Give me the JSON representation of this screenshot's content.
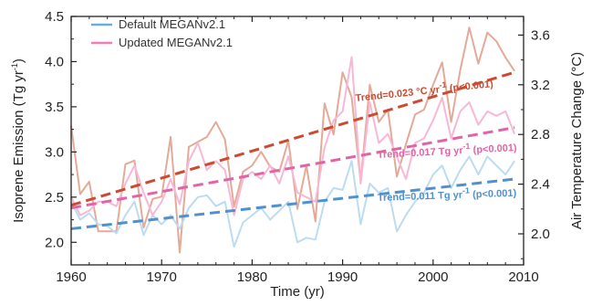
{
  "chart_data": {
    "type": "line",
    "xlabel": "Time (yr)",
    "ylabel_left": "Isoprene Emission (Tg yr",
    "ylabel_left_sup": "-1",
    "ylabel_left_tail": ")",
    "ylabel_right": "Air Temperature Change (°C)",
    "xlim": [
      1960,
      2010
    ],
    "ylim_left": [
      1.75,
      4.5
    ],
    "ylim_right": [
      1.75,
      3.75
    ],
    "x_ticks": [
      1960,
      1970,
      1980,
      1990,
      2000,
      2010
    ],
    "y_left_ticks": [
      2.0,
      2.5,
      3.0,
      3.5,
      4.0,
      4.5
    ],
    "y_left_tick_labels": [
      "2.0",
      "2.5",
      "3.0",
      "3.5",
      "4.0",
      "4.5"
    ],
    "y_right_ticks": [
      2.0,
      2.4,
      2.8,
      3.2,
      3.6
    ],
    "y_right_tick_labels": [
      "2.0",
      "2.4",
      "2.8",
      "3.2",
      "3.6"
    ],
    "legend_position": "top-left",
    "legend": [
      {
        "label": "Default MEGANv2.1",
        "color": "#6aaee0"
      },
      {
        "label": "Updated MEGANv2.1",
        "color": "#f07fb7"
      }
    ],
    "x": [
      1960,
      1961,
      1962,
      1963,
      1964,
      1965,
      1966,
      1967,
      1968,
      1969,
      1970,
      1971,
      1972,
      1973,
      1974,
      1975,
      1976,
      1977,
      1978,
      1979,
      1980,
      1981,
      1982,
      1983,
      1984,
      1985,
      1986,
      1987,
      1988,
      1989,
      1990,
      1991,
      1992,
      1993,
      1994,
      1995,
      1996,
      1997,
      1998,
      1999,
      2000,
      2001,
      2002,
      2003,
      2004,
      2005,
      2006,
      2007,
      2008,
      2009
    ],
    "series": [
      {
        "name": "Default MEGANv2.1",
        "axis": "left",
        "color": "#bcdcf2",
        "values": [
          2.45,
          2.25,
          2.32,
          2.2,
          2.18,
          2.1,
          2.3,
          2.45,
          2.08,
          2.3,
          2.2,
          2.3,
          2.15,
          2.38,
          2.5,
          2.52,
          2.4,
          2.45,
          1.95,
          2.22,
          2.3,
          2.38,
          2.25,
          2.35,
          2.45,
          2.0,
          2.05,
          2.03,
          2.45,
          2.6,
          2.58,
          2.9,
          2.2,
          2.65,
          2.55,
          2.6,
          2.12,
          2.3,
          2.45,
          2.55,
          2.75,
          2.85,
          2.6,
          2.8,
          2.95,
          2.75,
          2.95,
          2.85,
          2.75,
          2.9
        ]
      },
      {
        "name": "Updated MEGANv2.1",
        "axis": "left",
        "color": "#f7b8d6",
        "values": [
          2.5,
          2.3,
          2.35,
          2.45,
          2.45,
          2.4,
          2.65,
          2.85,
          2.55,
          2.3,
          2.45,
          2.7,
          2.42,
          2.9,
          3.1,
          2.8,
          2.9,
          2.8,
          2.3,
          2.7,
          2.78,
          2.7,
          2.85,
          2.65,
          2.95,
          2.55,
          2.5,
          2.45,
          3.05,
          3.35,
          3.45,
          4.05,
          2.65,
          3.55,
          3.1,
          3.2,
          2.95,
          2.7,
          3.1,
          3.15,
          3.35,
          3.6,
          3.15,
          3.45,
          3.55,
          3.3,
          3.45,
          3.4,
          3.45,
          3.2
        ]
      },
      {
        "name": "Air Temperature Change",
        "axis": "right",
        "color": "#e4aa98",
        "values": [
          2.87,
          2.32,
          2.42,
          2.02,
          2.02,
          2.02,
          2.56,
          2.59,
          2.05,
          2.28,
          2.3,
          2.78,
          1.85,
          2.7,
          2.74,
          2.78,
          2.9,
          2.76,
          2.22,
          2.5,
          2.55,
          2.66,
          2.54,
          2.5,
          2.75,
          2.2,
          2.55,
          2.1,
          3.05,
          2.8,
          3.3,
          3.1,
          2.42,
          3.2,
          2.9,
          3.0,
          2.46,
          2.72,
          2.96,
          3.0,
          3.2,
          3.38,
          2.9,
          3.32,
          3.66,
          3.37,
          3.62,
          3.55,
          3.42,
          3.31
        ]
      }
    ],
    "trends": [
      {
        "name": "Temperature trend",
        "axis": "right",
        "color": "#cc4a30",
        "x_range": [
          1960,
          2009
        ],
        "y_range": [
          2.23,
          3.3
        ],
        "label": "Trend=0.023 °C yr",
        "label_sup": "-1",
        "label_tail": " (p<0.001)"
      },
      {
        "name": "Updated MEGANv2.1 trend",
        "axis": "left",
        "color": "#e264a6",
        "x_range": [
          1960,
          2009
        ],
        "y_range": [
          2.38,
          3.27
        ],
        "label": "Trend=0.017 Tg yr",
        "label_sup": "-1",
        "label_tail": " (p<0.001)"
      },
      {
        "name": "Default MEGANv2.1 trend",
        "axis": "left",
        "color": "#4f91cd",
        "x_range": [
          1960,
          2009
        ],
        "y_range": [
          2.15,
          2.7
        ],
        "label": "Trend=0.011 Tg yr",
        "label_sup": "-1",
        "label_tail": " (p<0.001)"
      }
    ]
  }
}
